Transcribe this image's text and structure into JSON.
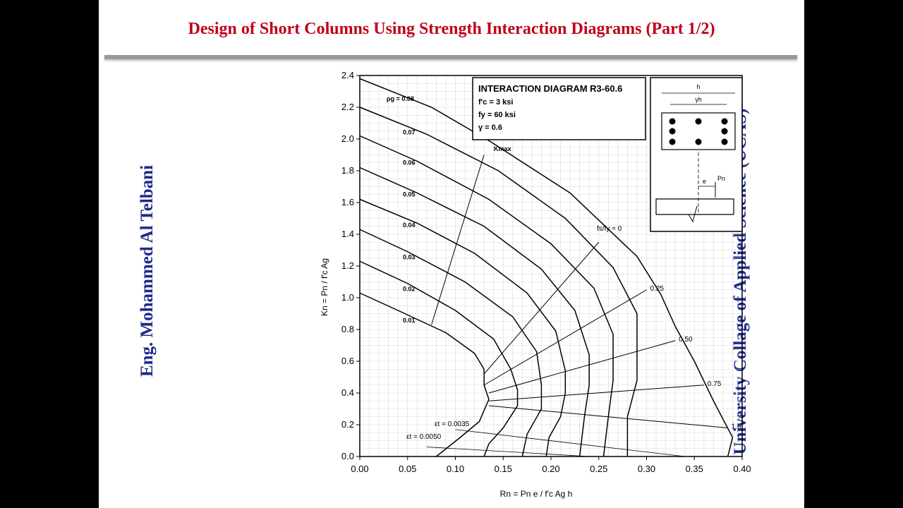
{
  "slide": {
    "title": "Design of Short Columns Using Strength Interaction Diagrams (Part 1/2)",
    "left_vertical": "Eng. Mohammed Al Telbani",
    "right_vertical": "University Collage of Applied Science (UCAS)"
  },
  "colors": {
    "title": "#c0001a",
    "side_text": "#1f2a8a",
    "frame": "#000000"
  },
  "chart_data": {
    "type": "line",
    "title": "INTERACTION DIAGRAM R3-60.6",
    "info_lines": [
      "f′c = 3 ksi",
      "fy = 60 ksi",
      "γ = 0.6"
    ],
    "xlabel": "Rn = Pn e / f′c Ag h",
    "ylabel": "Kn = Pn / f′c Ag",
    "xlim": [
      0,
      0.4
    ],
    "ylim": [
      0,
      2.4
    ],
    "x_ticks": [
      "0.00",
      "0.05",
      "0.10",
      "0.15",
      "0.20",
      "0.25",
      "0.30",
      "0.35",
      "0.40"
    ],
    "y_ticks": [
      "0.0",
      "0.2",
      "0.4",
      "0.6",
      "0.8",
      "1.0",
      "1.2",
      "1.4",
      "1.6",
      "1.8",
      "2.0",
      "2.2",
      "2.4"
    ],
    "grid": true,
    "series": [
      {
        "name": "0.01",
        "points": [
          [
            0,
            1.03
          ],
          [
            0.04,
            0.92
          ],
          [
            0.09,
            0.78
          ],
          [
            0.12,
            0.65
          ],
          [
            0.13,
            0.55
          ],
          [
            0.13,
            0.45
          ],
          [
            0.135,
            0.36
          ],
          [
            0.125,
            0.22
          ],
          [
            0.105,
            0.12
          ],
          [
            0.08,
            0
          ]
        ]
      },
      {
        "name": "0.02",
        "points": [
          [
            0,
            1.23
          ],
          [
            0.05,
            1.09
          ],
          [
            0.1,
            0.92
          ],
          [
            0.14,
            0.74
          ],
          [
            0.158,
            0.55
          ],
          [
            0.165,
            0.42
          ],
          [
            0.165,
            0.32
          ],
          [
            0.15,
            0.18
          ],
          [
            0.135,
            0.08
          ],
          [
            0.13,
            0
          ]
        ]
      },
      {
        "name": "0.03",
        "points": [
          [
            0,
            1.43
          ],
          [
            0.05,
            1.29
          ],
          [
            0.11,
            1.1
          ],
          [
            0.16,
            0.88
          ],
          [
            0.185,
            0.66
          ],
          [
            0.19,
            0.45
          ],
          [
            0.19,
            0.3
          ],
          [
            0.175,
            0.14
          ],
          [
            0.17,
            0
          ]
        ]
      },
      {
        "name": "0.04",
        "points": [
          [
            0,
            1.62
          ],
          [
            0.06,
            1.47
          ],
          [
            0.12,
            1.28
          ],
          [
            0.175,
            1.03
          ],
          [
            0.205,
            0.79
          ],
          [
            0.215,
            0.54
          ],
          [
            0.215,
            0.4
          ],
          [
            0.21,
            0.25
          ],
          [
            0.198,
            0.12
          ],
          [
            0.195,
            0
          ]
        ]
      },
      {
        "name": "0.05",
        "points": [
          [
            0,
            1.82
          ],
          [
            0.06,
            1.66
          ],
          [
            0.13,
            1.45
          ],
          [
            0.19,
            1.18
          ],
          [
            0.225,
            0.92
          ],
          [
            0.24,
            0.64
          ],
          [
            0.24,
            0.45
          ],
          [
            0.235,
            0.25
          ],
          [
            0.23,
            0
          ]
        ]
      },
      {
        "name": "0.06",
        "points": [
          [
            0,
            2.02
          ],
          [
            0.06,
            1.86
          ],
          [
            0.135,
            1.62
          ],
          [
            0.2,
            1.34
          ],
          [
            0.245,
            1.06
          ],
          [
            0.265,
            0.77
          ],
          [
            0.265,
            0.48
          ],
          [
            0.26,
            0.25
          ],
          [
            0.255,
            0
          ]
        ]
      },
      {
        "name": "0.07",
        "points": [
          [
            0,
            2.2
          ],
          [
            0.07,
            2.03
          ],
          [
            0.145,
            1.8
          ],
          [
            0.215,
            1.5
          ],
          [
            0.265,
            1.19
          ],
          [
            0.29,
            0.9
          ],
          [
            0.29,
            0.48
          ],
          [
            0.28,
            0.25
          ],
          [
            0.28,
            0
          ]
        ]
      },
      {
        "name": "0.08",
        "points": [
          [
            0,
            2.38
          ],
          [
            0.075,
            2.2
          ],
          [
            0.135,
            1.99
          ],
          [
            0.22,
            1.66
          ],
          [
            0.29,
            1.26
          ],
          [
            0.315,
            1.02
          ],
          [
            0.33,
            0.82
          ],
          [
            0.35,
            0.6
          ],
          [
            0.37,
            0.35
          ],
          [
            0.39,
            0.12
          ],
          [
            0.385,
            0
          ]
        ]
      }
    ],
    "kmax_line": [
      [
        0.075,
        0.83
      ],
      [
        0.13,
        1.9
      ]
    ],
    "fs_lines": [
      {
        "name": "fs/fy = 0",
        "points": [
          [
            0.13,
            0.52
          ],
          [
            0.25,
            1.35
          ]
        ]
      },
      {
        "name": "0.25",
        "points": [
          [
            0.13,
            0.45
          ],
          [
            0.3,
            1.05
          ]
        ]
      },
      {
        "name": "0.50",
        "points": [
          [
            0.135,
            0.4
          ],
          [
            0.33,
            0.73
          ]
        ]
      },
      {
        "name": "0.75",
        "points": [
          [
            0.135,
            0.35
          ],
          [
            0.36,
            0.45
          ]
        ]
      },
      {
        "name": "1.0",
        "points": [
          [
            0.135,
            0.32
          ],
          [
            0.385,
            0.18
          ]
        ]
      }
    ],
    "strain_lines": [
      {
        "name": "εt = 0.0035",
        "points": [
          [
            0.1,
            0.17
          ],
          [
            0.34,
            0.0
          ]
        ]
      },
      {
        "name": "εt = 0.0050",
        "points": [
          [
            0.07,
            0.06
          ],
          [
            0.24,
            0.0
          ]
        ]
      }
    ],
    "annotations": {
      "rho": "ρg = 0.08",
      "kmax": "Kmax",
      "fs_label": "fs/fy = 0",
      "eps1": "εt = 0.0035",
      "eps2": "εt = 0.0050",
      "inset_h": "h",
      "inset_gamma_h": "γh",
      "inset_e": "e",
      "inset_pn": "Pn"
    }
  }
}
